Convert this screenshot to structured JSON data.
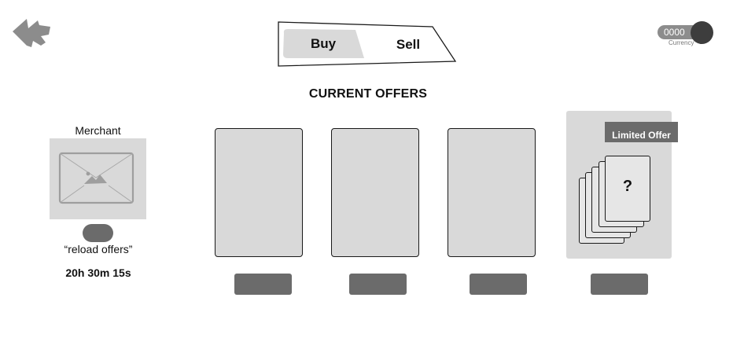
{
  "header": {
    "back_icon": "rewind-back-icon",
    "tabs": [
      {
        "label": "Buy",
        "active": true
      },
      {
        "label": "Sell",
        "active": false
      }
    ],
    "currency": {
      "value": "0000",
      "caption": "Currency"
    }
  },
  "main": {
    "heading": "CURRENT OFFERS",
    "merchant": {
      "name": "Merchant",
      "image_icon": "image-placeholder-icon",
      "reload_label": "“reload offers”",
      "timer": "20h 30m 15s"
    },
    "offers": [
      {
        "id": "offer-1"
      },
      {
        "id": "offer-2"
      },
      {
        "id": "offer-3"
      }
    ],
    "limited_offer": {
      "badge": "Limited Offer",
      "mystery_mark": "?"
    }
  },
  "colors": {
    "card_fill": "#d9d9d9",
    "button_fill": "#6b6b6b",
    "outline": "#1a1a1a",
    "currency_circle": "#3d3d3d"
  }
}
